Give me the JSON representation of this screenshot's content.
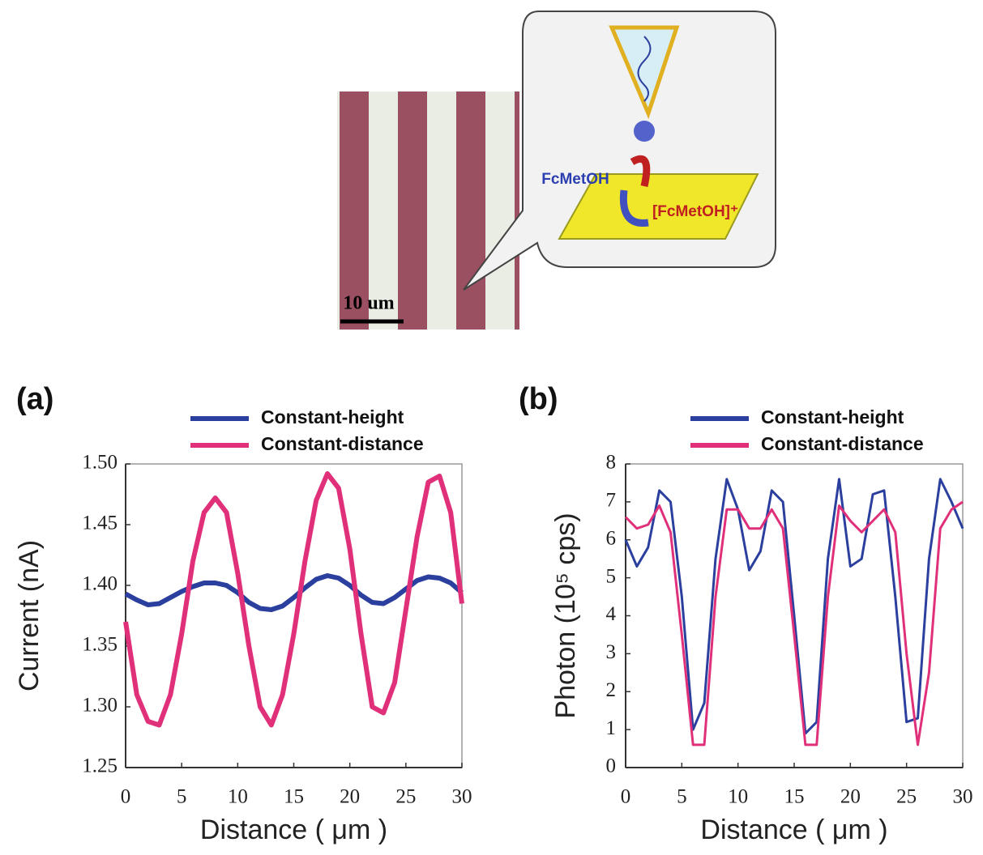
{
  "figure": {
    "scale_bar": "10 um",
    "reactant": "FcMetOH",
    "product": "[FcMetOH]⁺"
  },
  "chart_data": [
    {
      "type": "line",
      "panel": "(a)",
      "x_label": "Distance ( μm )",
      "y_label": "Current (nA)",
      "x": [
        0,
        1,
        2,
        3,
        4,
        5,
        6,
        7,
        8,
        9,
        10,
        11,
        12,
        13,
        14,
        15,
        16,
        17,
        18,
        19,
        20,
        21,
        22,
        23,
        24,
        25,
        26,
        27,
        28,
        29,
        30
      ],
      "series": [
        {
          "name": "Constant-height",
          "color": "#2b3f9e",
          "values": [
            1.393,
            1.388,
            1.384,
            1.385,
            1.39,
            1.395,
            1.399,
            1.402,
            1.402,
            1.4,
            1.394,
            1.386,
            1.381,
            1.38,
            1.383,
            1.39,
            1.398,
            1.405,
            1.408,
            1.406,
            1.4,
            1.392,
            1.386,
            1.385,
            1.39,
            1.397,
            1.404,
            1.407,
            1.406,
            1.402,
            1.394
          ]
        },
        {
          "name": "Constant-distance",
          "color": "#e0307a",
          "values": [
            1.37,
            1.31,
            1.288,
            1.285,
            1.31,
            1.36,
            1.42,
            1.46,
            1.472,
            1.46,
            1.41,
            1.35,
            1.3,
            1.285,
            1.31,
            1.36,
            1.42,
            1.47,
            1.492,
            1.48,
            1.43,
            1.36,
            1.3,
            1.295,
            1.32,
            1.38,
            1.44,
            1.485,
            1.49,
            1.46,
            1.385
          ]
        }
      ],
      "xlim": [
        0,
        30
      ],
      "xticks": [
        0,
        5,
        10,
        15,
        20,
        25,
        30
      ],
      "ylim": [
        1.25,
        1.5
      ],
      "yticks": [
        {
          "value": 1.25,
          "label": "1.25"
        },
        {
          "value": 1.3,
          "label": "1.30"
        },
        {
          "value": 1.35,
          "label": "1.35"
        },
        {
          "value": 1.4,
          "label": "1.40"
        },
        {
          "value": 1.45,
          "label": "1.45"
        },
        {
          "value": 1.5,
          "label": "1.50"
        }
      ],
      "line_width": 6
    },
    {
      "type": "line",
      "panel": "(b)",
      "x_label": "Distance ( μm )",
      "y_label": "Photon (10⁵ cps)",
      "x": [
        0,
        1,
        2,
        3,
        4,
        5,
        6,
        7,
        8,
        9,
        10,
        11,
        12,
        13,
        14,
        15,
        16,
        17,
        18,
        19,
        20,
        21,
        22,
        23,
        24,
        25,
        26,
        27,
        28,
        29,
        30
      ],
      "series": [
        {
          "name": "Constant-height",
          "color": "#2b3f9e",
          "values": [
            6.0,
            5.3,
            5.8,
            7.3,
            7.0,
            4.5,
            1.0,
            1.7,
            5.5,
            7.6,
            6.8,
            5.2,
            5.7,
            7.3,
            7.0,
            4.0,
            0.9,
            1.2,
            5.5,
            7.6,
            5.3,
            5.5,
            7.2,
            7.3,
            4.5,
            1.2,
            1.3,
            5.5,
            7.6,
            7.0,
            6.3
          ]
        },
        {
          "name": "Constant-distance",
          "color": "#e0307a",
          "values": [
            6.6,
            6.3,
            6.4,
            6.9,
            6.2,
            3.5,
            0.6,
            0.6,
            4.5,
            6.8,
            6.8,
            6.3,
            6.3,
            6.8,
            6.3,
            3.5,
            0.6,
            0.6,
            4.5,
            6.9,
            6.5,
            6.2,
            6.5,
            6.8,
            6.2,
            3.0,
            0.6,
            2.5,
            6.3,
            6.8,
            7.0
          ]
        }
      ],
      "xlim": [
        0,
        30
      ],
      "xticks": [
        0,
        5,
        10,
        15,
        20,
        25,
        30
      ],
      "ylim": [
        0,
        8
      ],
      "yticks": [
        0,
        1,
        2,
        3,
        4,
        5,
        6,
        7,
        8
      ],
      "line_width": 3
    }
  ]
}
